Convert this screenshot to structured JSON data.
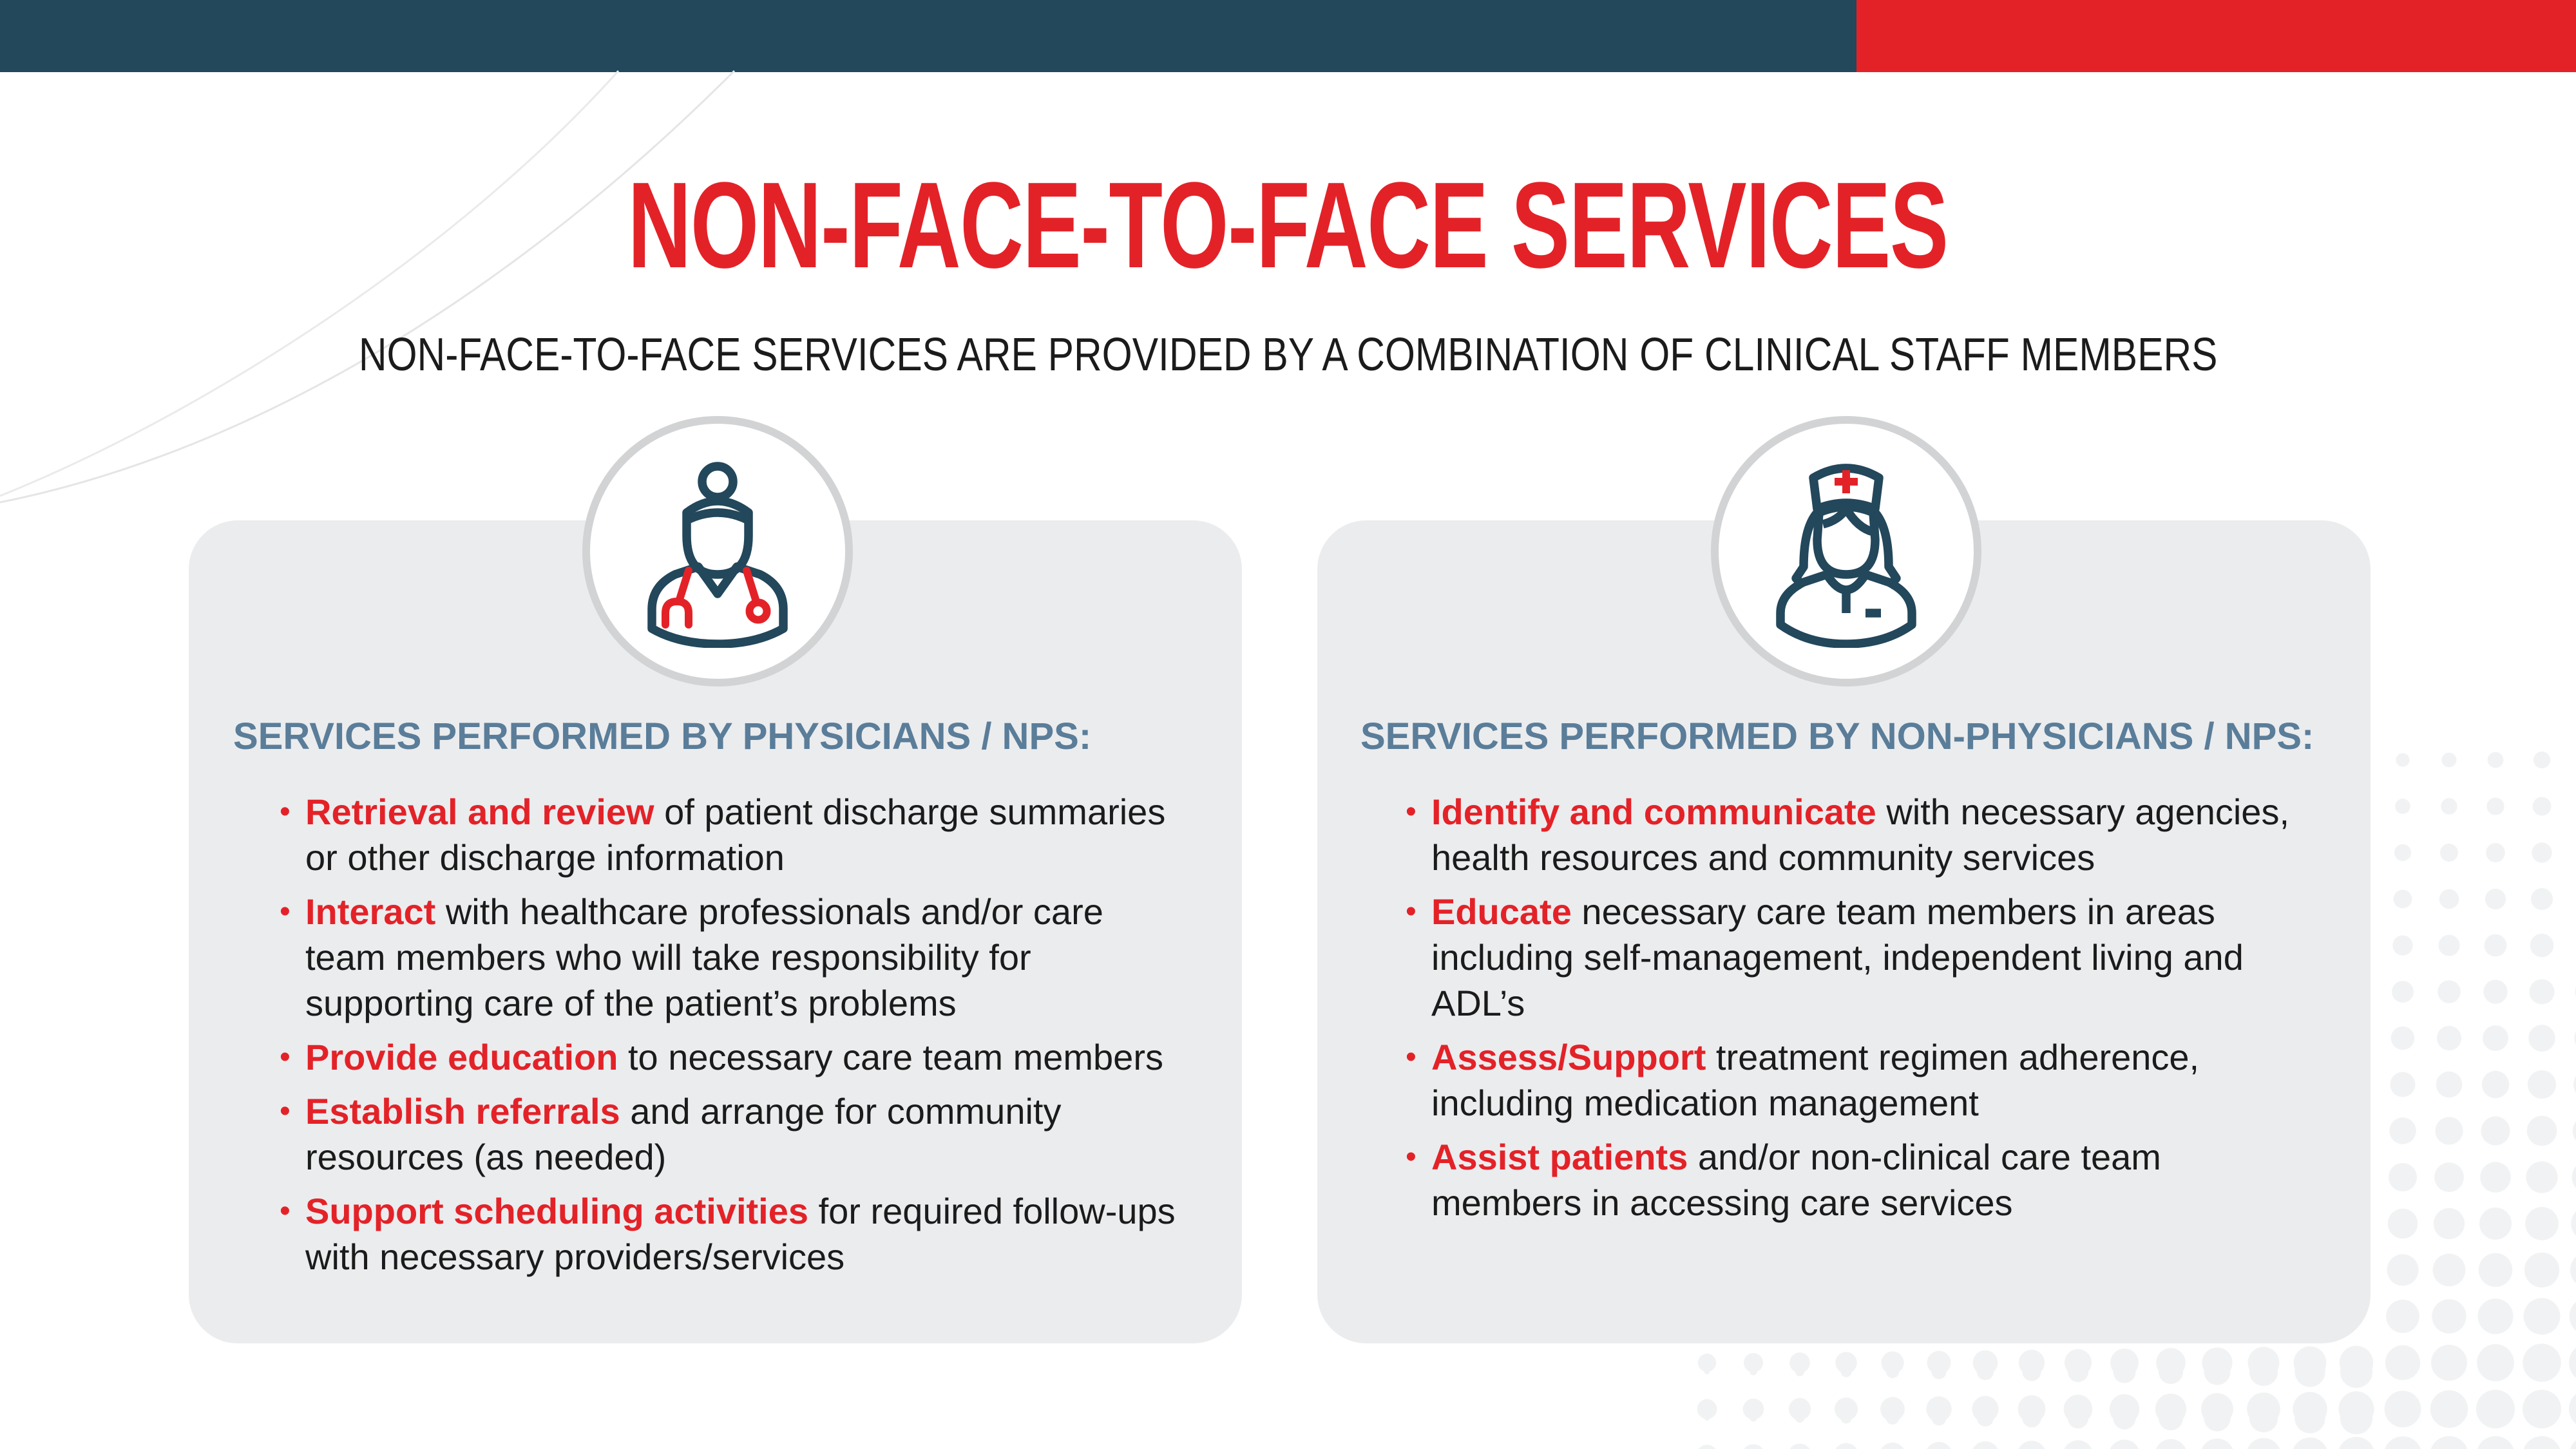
{
  "colors": {
    "dark": "#23475b",
    "red": "#e32228",
    "heading": "#5a7d99",
    "card": "#ebecee"
  },
  "title": "NON-FACE-TO-FACE SERVICES",
  "subtitle": "NON-FACE-TO-FACE SERVICES ARE PROVIDED BY A COMBINATION OF CLINICAL STAFF MEMBERS",
  "left": {
    "icon": "doctor-stethoscope-icon",
    "heading": "SERVICES PERFORMED BY PHYSICIANS / NPS:",
    "items": [
      {
        "lead": "Retrieval and review",
        "rest": " of patient discharge summaries or other discharge information"
      },
      {
        "lead": "Interact",
        "rest": " with healthcare professionals and/or care team members who will take responsibility for supporting care of the patient’s problems"
      },
      {
        "lead": "Provide education",
        "rest": " to necessary care team members"
      },
      {
        "lead": "Establish referrals",
        "rest": " and arrange for community resources (as needed)"
      },
      {
        "lead": "Support scheduling activities",
        "rest": " for required follow-ups with necessary providers/services"
      }
    ]
  },
  "right": {
    "icon": "nurse-icon",
    "heading": "SERVICES PERFORMED BY NON-PHYSICIANS / NPS:",
    "items": [
      {
        "lead": "Identify and communicate",
        "rest": " with necessary agencies, health resources and community services"
      },
      {
        "lead": "Educate",
        "rest": " necessary care team members in areas including self-management, independent living and ADL’s"
      },
      {
        "lead": "Assess/Support",
        "rest": " treatment regimen adherence, including medication management"
      },
      {
        "lead": "Assist patients",
        "rest": " and/or non-clinical care team members in accessing care services"
      }
    ]
  }
}
